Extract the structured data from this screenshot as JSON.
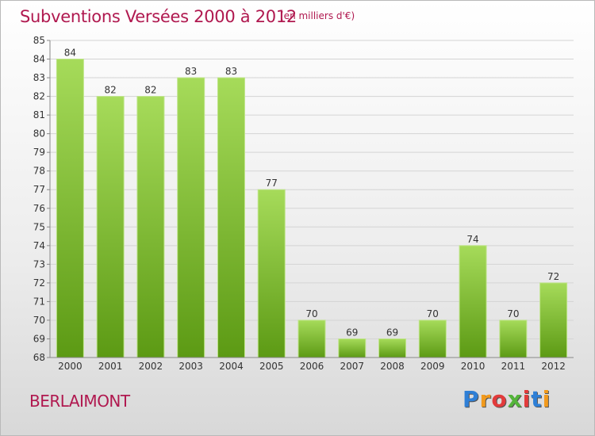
{
  "header": {
    "title": "Subventions Versées 2000 à 2012",
    "unit": "(en milliers d'€)"
  },
  "footer": {
    "place": "BERLAIMONT",
    "logo_letters": [
      "P",
      "r",
      "o",
      "x",
      "i",
      "t",
      "i"
    ],
    "logo_colors": [
      "#2e7fd6",
      "#f29a1c",
      "#e23b3b",
      "#54b43a",
      "#e23b3b",
      "#2e7fd6",
      "#f29a1c"
    ]
  },
  "chart_data": {
    "type": "bar",
    "title": "Subventions Versées 2000 à 2012",
    "subtitle": "(en milliers d'€)",
    "categories": [
      "2000",
      "2001",
      "2002",
      "2003",
      "2004",
      "2005",
      "2006",
      "2007",
      "2008",
      "2009",
      "2010",
      "2011",
      "2012"
    ],
    "values": [
      84,
      82,
      82,
      83,
      83,
      77,
      70,
      69,
      69,
      70,
      74,
      70,
      72
    ],
    "data_labels": [
      "84",
      "82",
      "82",
      "83",
      "83",
      "77",
      "70",
      "69",
      "69",
      "70",
      "74",
      "70",
      "72"
    ],
    "yticks": [
      "68",
      "69",
      "70",
      "71",
      "72",
      "73",
      "74",
      "75",
      "76",
      "77",
      "78",
      "79",
      "80",
      "81",
      "82",
      "83",
      "84",
      "85"
    ],
    "ylim": [
      68,
      85
    ],
    "grid": "horizontal",
    "bar_color_light": "#a6db5a",
    "bar_color_dark": "#5c9a14"
  }
}
